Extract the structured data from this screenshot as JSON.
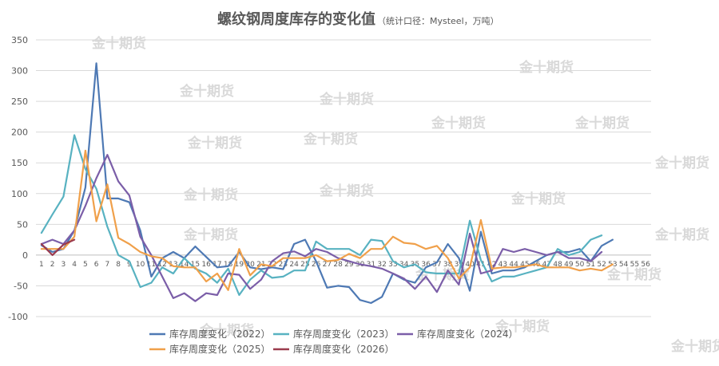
{
  "chart_data": {
    "type": "line",
    "title": "螺纹钢周度库存的变化值",
    "subtitle": "（统计口径：Mysteel，万吨）",
    "xlabel": "",
    "ylabel": "",
    "x": [
      1,
      2,
      3,
      4,
      5,
      6,
      7,
      8,
      9,
      10,
      11,
      12,
      13,
      14,
      15,
      16,
      17,
      18,
      19,
      20,
      21,
      22,
      23,
      24,
      25,
      26,
      27,
      28,
      29,
      30,
      31,
      32,
      33,
      34,
      35,
      36,
      37,
      38,
      39,
      40,
      41,
      42,
      43,
      44,
      45,
      46,
      47,
      48,
      49,
      50,
      51,
      52,
      53,
      54,
      55,
      56
    ],
    "ylim": [
      -100,
      350
    ],
    "yticks": [
      -100,
      -50,
      0,
      50,
      100,
      150,
      200,
      250,
      300,
      350
    ],
    "grid": true,
    "legend_position": "bottom",
    "watermark": "金十期货",
    "series": [
      {
        "name": "库存周度变化（2022）",
        "color": "#4e79b4",
        "values": [
          16,
          5,
          10,
          40,
          110,
          312,
          92,
          92,
          86,
          40,
          -35,
          -5,
          5,
          -5,
          14,
          -3,
          -20,
          -18,
          5,
          -20,
          -23,
          -20,
          -23,
          18,
          25,
          -10,
          -53,
          -50,
          -52,
          -73,
          -78,
          -68,
          -30,
          -40,
          -45,
          -20,
          -12,
          18,
          -5,
          -58,
          38,
          -30,
          -25,
          -25,
          -20,
          -10,
          0,
          5,
          5,
          10,
          -10,
          15,
          25,
          null,
          null,
          null
        ]
      },
      {
        "name": "库存周度变化（2023）",
        "color": "#58b2c1",
        "values": [
          36,
          66,
          95,
          195,
          140,
          108,
          46,
          0,
          -10,
          -52,
          -45,
          -20,
          -30,
          -5,
          -22,
          -30,
          -45,
          -22,
          -65,
          -40,
          -25,
          -37,
          -35,
          -25,
          -25,
          22,
          10,
          10,
          10,
          0,
          25,
          23,
          -10,
          -20,
          -15,
          -28,
          -30,
          -30,
          -30,
          56,
          -8,
          -43,
          -35,
          -35,
          -30,
          -25,
          -20,
          10,
          0,
          5,
          25,
          32,
          null,
          null,
          null,
          null
        ]
      },
      {
        "name": "库存周度变化（2024）",
        "color": "#7b5ea8",
        "values": [
          18,
          25,
          18,
          40,
          80,
          125,
          163,
          120,
          97,
          30,
          0,
          -35,
          -70,
          -62,
          -75,
          -62,
          -65,
          -30,
          -32,
          -55,
          -40,
          -10,
          3,
          6,
          -2,
          10,
          5,
          -5,
          -10,
          -15,
          -18,
          -22,
          -30,
          -38,
          -55,
          -35,
          -60,
          -25,
          -48,
          35,
          -30,
          -25,
          10,
          5,
          10,
          5,
          0,
          5,
          -5,
          -5,
          -10,
          5,
          null,
          null,
          null,
          null
        ]
      },
      {
        "name": "库存周度变化（2025）",
        "color": "#f0a04a",
        "values": [
          10,
          10,
          10,
          30,
          170,
          55,
          115,
          28,
          18,
          5,
          -2,
          -5,
          -18,
          -20,
          -20,
          -43,
          -30,
          -57,
          10,
          -33,
          -15,
          -18,
          -5,
          -5,
          -5,
          0,
          -10,
          -8,
          2,
          -5,
          10,
          10,
          30,
          20,
          18,
          10,
          15,
          -5,
          -38,
          -20,
          57,
          -22,
          -20,
          -20,
          -18,
          -15,
          -20,
          -20,
          -20,
          -25,
          -22,
          -25,
          -15,
          null,
          null,
          null
        ]
      },
      {
        "name": "库存周度变化（2026）",
        "color": "#9b3b4e",
        "values": [
          18,
          0,
          17,
          25,
          null,
          null,
          null,
          null,
          null,
          null,
          null,
          null,
          null,
          null,
          null,
          null,
          null,
          null,
          null,
          null,
          null,
          null,
          null,
          null,
          null,
          null,
          null,
          null,
          null,
          null,
          null,
          null,
          null,
          null,
          null,
          null,
          null,
          null,
          null,
          null,
          null,
          null,
          null,
          null,
          null,
          null,
          null,
          null,
          null,
          null,
          null,
          null,
          null,
          null,
          null,
          null
        ]
      }
    ]
  }
}
